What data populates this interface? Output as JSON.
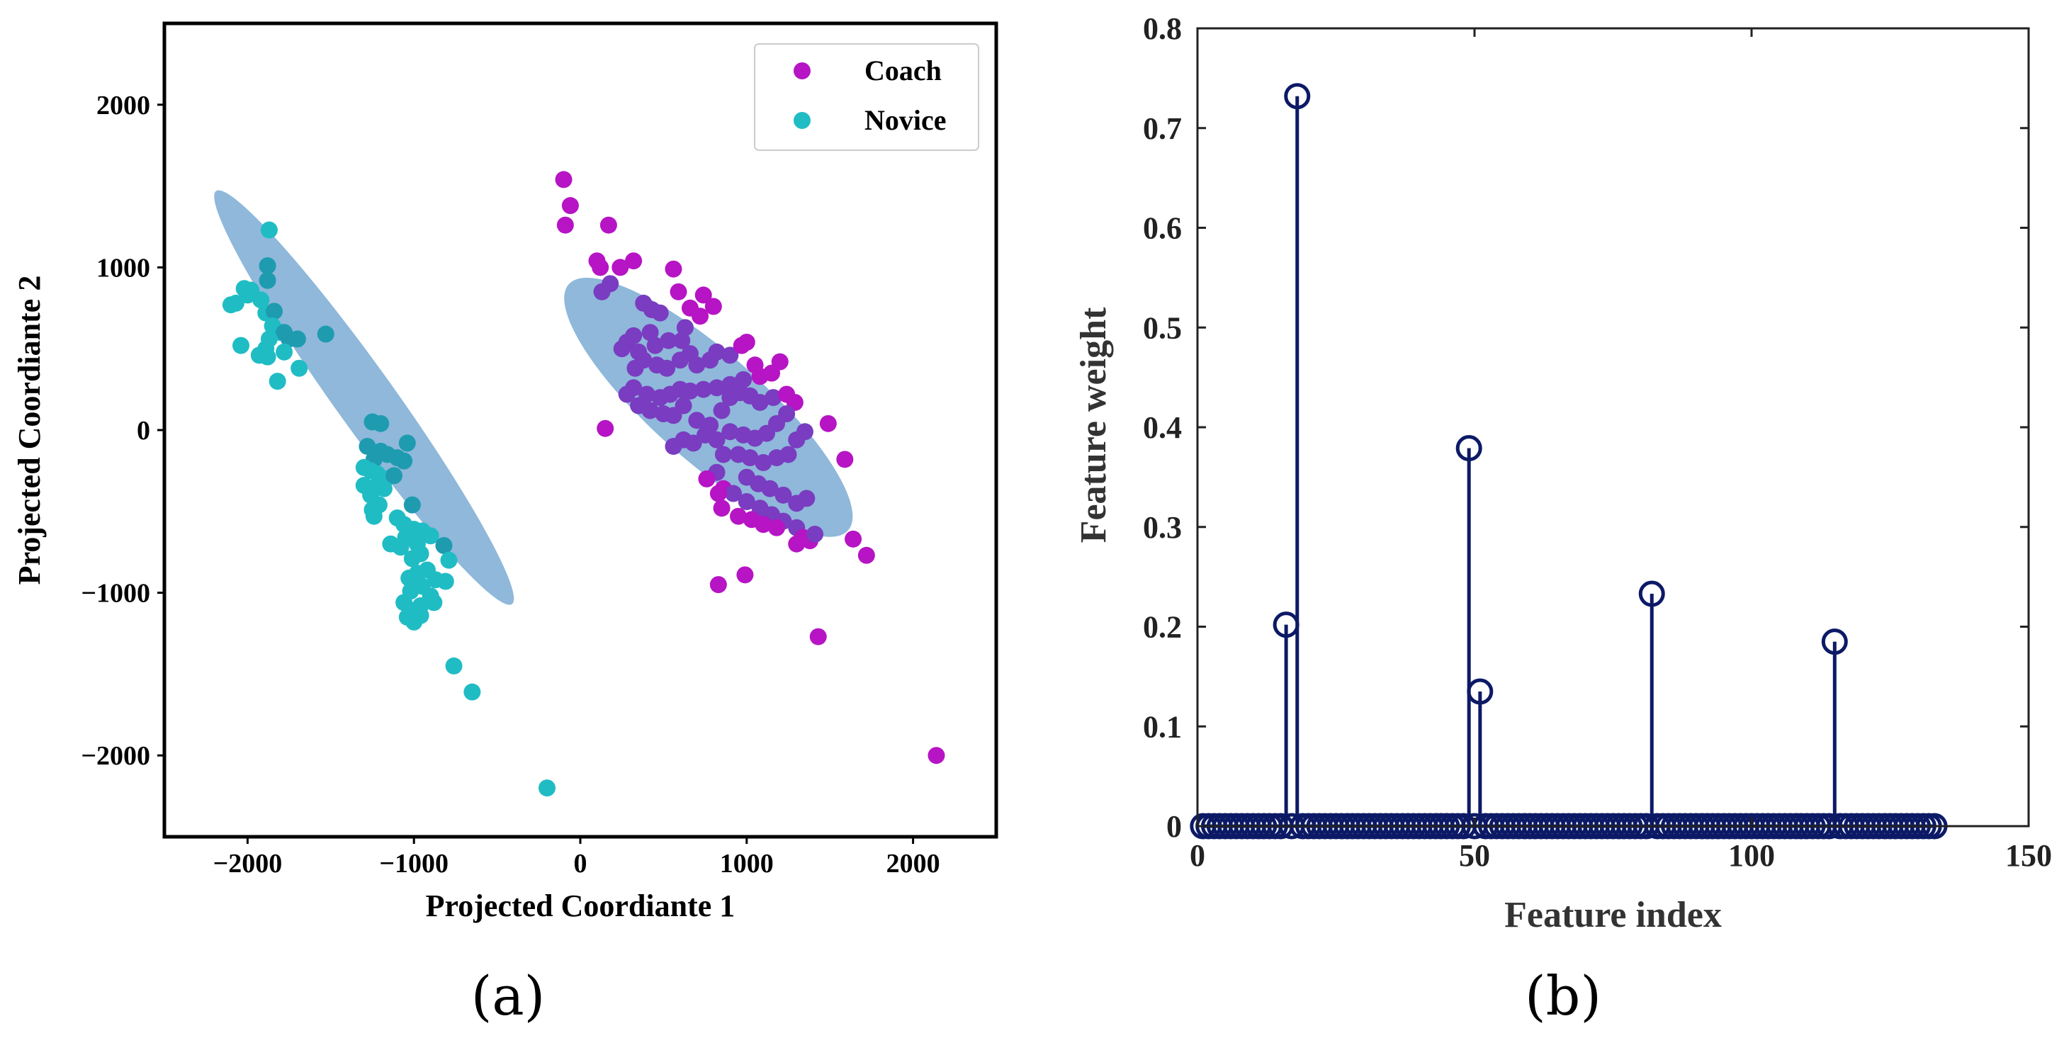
{
  "panels": {
    "a": "(a)",
    "b": "(b)"
  },
  "colors": {
    "coach": "#b614c4",
    "coach_overlap": "#7a3cc0",
    "novice": "#20bcc4",
    "novice_overlap": "#1f9bb0",
    "ellipse": "#6fa4d0",
    "stem": "#0c1a66"
  },
  "chart_data": [
    {
      "type": "scatter",
      "xlabel": "Projected Coordiante 1",
      "ylabel": "Projected Coordiante 2",
      "xlim": [
        -2500,
        2500
      ],
      "ylim": [
        -2500,
        2500
      ],
      "xticks": [
        -2000,
        -1000,
        0,
        1000,
        2000
      ],
      "yticks": [
        -2000,
        -1000,
        0,
        1000,
        2000
      ],
      "xtick_labels": [
        "−2000",
        "−1000",
        "0",
        "1000",
        "2000"
      ],
      "ytick_labels": [
        "−2000",
        "−1000",
        "0",
        "1000",
        "2000"
      ],
      "legend": {
        "position": "top-right",
        "entries": [
          "Coach",
          "Novice"
        ]
      },
      "ellipses": [
        {
          "group": "Novice",
          "center": [
            -1300,
            200
          ],
          "semi_major": 1550,
          "semi_minor": 180,
          "angle_deg": -55
        },
        {
          "group": "Coach",
          "center": [
            770,
            140
          ],
          "semi_major": 1130,
          "semi_minor": 330,
          "angle_deg": -42
        }
      ],
      "series": [
        {
          "name": "Coach",
          "points": [
            [
              -100,
              1540
            ],
            [
              -60,
              1380
            ],
            [
              -90,
              1260
            ],
            [
              170,
              1260
            ],
            [
              100,
              1040
            ],
            [
              120,
              1000
            ],
            [
              240,
              1000
            ],
            [
              320,
              1040
            ],
            [
              180,
              900
            ],
            [
              130,
              850
            ],
            [
              380,
              780
            ],
            [
              430,
              740
            ],
            [
              480,
              720
            ],
            [
              560,
              990
            ],
            [
              590,
              850
            ],
            [
              660,
              750
            ],
            [
              740,
              830
            ],
            [
              800,
              760
            ],
            [
              720,
              700
            ],
            [
              630,
              630
            ],
            [
              610,
              550
            ],
            [
              530,
              550
            ],
            [
              420,
              600
            ],
            [
              320,
              580
            ],
            [
              280,
              540
            ],
            [
              250,
              500
            ],
            [
              350,
              480
            ],
            [
              450,
              520
            ],
            [
              380,
              430
            ],
            [
              330,
              380
            ],
            [
              460,
              400
            ],
            [
              520,
              380
            ],
            [
              600,
              430
            ],
            [
              660,
              470
            ],
            [
              700,
              400
            ],
            [
              780,
              430
            ],
            [
              820,
              480
            ],
            [
              900,
              460
            ],
            [
              970,
              520
            ],
            [
              1000,
              540
            ],
            [
              1050,
              400
            ],
            [
              1200,
              420
            ],
            [
              1150,
              350
            ],
            [
              1080,
              330
            ],
            [
              980,
              310
            ],
            [
              900,
              280
            ],
            [
              820,
              260
            ],
            [
              740,
              250
            ],
            [
              660,
              240
            ],
            [
              600,
              250
            ],
            [
              540,
              220
            ],
            [
              480,
              200
            ],
            [
              400,
              220
            ],
            [
              320,
              260
            ],
            [
              280,
              220
            ],
            [
              350,
              150
            ],
            [
              420,
              120
            ],
            [
              500,
              100
            ],
            [
              560,
              90
            ],
            [
              620,
              150
            ],
            [
              700,
              60
            ],
            [
              780,
              30
            ],
            [
              850,
              120
            ],
            [
              900,
              200
            ],
            [
              960,
              230
            ],
            [
              1020,
              210
            ],
            [
              1080,
              170
            ],
            [
              1160,
              200
            ],
            [
              1240,
              220
            ],
            [
              1290,
              170
            ],
            [
              1240,
              100
            ],
            [
              1180,
              40
            ],
            [
              1120,
              -20
            ],
            [
              1050,
              -50
            ],
            [
              980,
              -30
            ],
            [
              900,
              -10
            ],
            [
              820,
              -60
            ],
            [
              750,
              -30
            ],
            [
              680,
              -80
            ],
            [
              620,
              -60
            ],
            [
              560,
              -100
            ],
            [
              860,
              -150
            ],
            [
              950,
              -150
            ],
            [
              1020,
              -170
            ],
            [
              1100,
              -200
            ],
            [
              1180,
              -170
            ],
            [
              1250,
              -150
            ],
            [
              1300,
              -60
            ],
            [
              1350,
              -10
            ],
            [
              1490,
              40
            ],
            [
              1590,
              -180
            ],
            [
              1000,
              -290
            ],
            [
              1070,
              -330
            ],
            [
              1140,
              -360
            ],
            [
              1220,
              -400
            ],
            [
              1300,
              -450
            ],
            [
              1360,
              -420
            ],
            [
              820,
              -260
            ],
            [
              760,
              -300
            ],
            [
              860,
              -360
            ],
            [
              920,
              -390
            ],
            [
              1000,
              -440
            ],
            [
              1080,
              -480
            ],
            [
              1150,
              -520
            ],
            [
              1220,
              -560
            ],
            [
              1300,
              -600
            ],
            [
              1340,
              -660
            ],
            [
              1380,
              -680
            ],
            [
              1180,
              -600
            ],
            [
              1100,
              -580
            ],
            [
              1030,
              -550
            ],
            [
              950,
              -530
            ],
            [
              850,
              -480
            ],
            [
              830,
              -390
            ],
            [
              1410,
              -640
            ],
            [
              1300,
              -700
            ],
            [
              1640,
              -670
            ],
            [
              1720,
              -770
            ],
            [
              990,
              -890
            ],
            [
              830,
              -950
            ],
            [
              1430,
              -1270
            ],
            [
              150,
              10
            ],
            [
              2140,
              -2000
            ]
          ]
        },
        {
          "name": "Novice",
          "points": [
            [
              -1870,
              1230
            ],
            [
              -1880,
              1010
            ],
            [
              -1880,
              920
            ],
            [
              -2100,
              770
            ],
            [
              -2070,
              780
            ],
            [
              -2000,
              830
            ],
            [
              -2020,
              870
            ],
            [
              -1980,
              860
            ],
            [
              -1920,
              800
            ],
            [
              -1890,
              720
            ],
            [
              -1840,
              730
            ],
            [
              -1850,
              640
            ],
            [
              -1800,
              600
            ],
            [
              -1780,
              600
            ],
            [
              -1750,
              560
            ],
            [
              -1700,
              560
            ],
            [
              -1530,
              590
            ],
            [
              -1870,
              560
            ],
            [
              -1890,
              500
            ],
            [
              -1900,
              460
            ],
            [
              -1880,
              450
            ],
            [
              -2040,
              520
            ],
            [
              -1930,
              460
            ],
            [
              -1780,
              480
            ],
            [
              -1690,
              380
            ],
            [
              -1820,
              300
            ],
            [
              -1250,
              50
            ],
            [
              -1200,
              40
            ],
            [
              -1040,
              -80
            ],
            [
              -1280,
              -100
            ],
            [
              -1200,
              -130
            ],
            [
              -1160,
              -150
            ],
            [
              -1100,
              -170
            ],
            [
              -1060,
              -190
            ],
            [
              -1240,
              -180
            ],
            [
              -1300,
              -230
            ],
            [
              -1260,
              -250
            ],
            [
              -1220,
              -270
            ],
            [
              -1170,
              -300
            ],
            [
              -1120,
              -280
            ],
            [
              -1300,
              -340
            ],
            [
              -1230,
              -350
            ],
            [
              -1180,
              -360
            ],
            [
              -1260,
              -400
            ],
            [
              -1210,
              -460
            ],
            [
              -1010,
              -460
            ],
            [
              -1250,
              -490
            ],
            [
              -1240,
              -530
            ],
            [
              -1100,
              -540
            ],
            [
              -1060,
              -580
            ],
            [
              -1000,
              -610
            ],
            [
              -950,
              -620
            ],
            [
              -1050,
              -660
            ],
            [
              -1140,
              -700
            ],
            [
              -1080,
              -720
            ],
            [
              -980,
              -700
            ],
            [
              -900,
              -650
            ],
            [
              -820,
              -710
            ],
            [
              -960,
              -760
            ],
            [
              -1010,
              -790
            ],
            [
              -790,
              -800
            ],
            [
              -920,
              -860
            ],
            [
              -980,
              -880
            ],
            [
              -1030,
              -910
            ],
            [
              -870,
              -920
            ],
            [
              -810,
              -930
            ],
            [
              -950,
              -960
            ],
            [
              -1020,
              -990
            ],
            [
              -900,
              -1020
            ],
            [
              -1060,
              -1060
            ],
            [
              -960,
              -1080
            ],
            [
              -880,
              -1060
            ],
            [
              -1000,
              -1110
            ],
            [
              -1040,
              -1150
            ],
            [
              -960,
              -1140
            ],
            [
              -1000,
              -1180
            ],
            [
              -760,
              -1450
            ],
            [
              -650,
              -1610
            ],
            [
              -200,
              -2200
            ]
          ]
        }
      ]
    },
    {
      "type": "stem",
      "xlabel": "Feature index",
      "ylabel": "Feature weight",
      "xlim": [
        0,
        150
      ],
      "ylim": [
        0,
        0.8
      ],
      "xticks": [
        0,
        50,
        100,
        150
      ],
      "yticks": [
        0,
        0.1,
        0.2,
        0.3,
        0.4,
        0.5,
        0.6,
        0.7,
        0.8
      ],
      "xtick_labels": [
        "0",
        "50",
        "100",
        "150"
      ],
      "ytick_labels": [
        "0",
        "0.1",
        "0.2",
        "0.3",
        "0.4",
        "0.5",
        "0.6",
        "0.7",
        "0.8"
      ],
      "n_features": 133,
      "nonzero": [
        {
          "x": 16,
          "y": 0.202
        },
        {
          "x": 18,
          "y": 0.732
        },
        {
          "x": 49,
          "y": 0.379
        },
        {
          "x": 51,
          "y": 0.135
        },
        {
          "x": 82,
          "y": 0.233
        },
        {
          "x": 115,
          "y": 0.185
        }
      ]
    }
  ]
}
